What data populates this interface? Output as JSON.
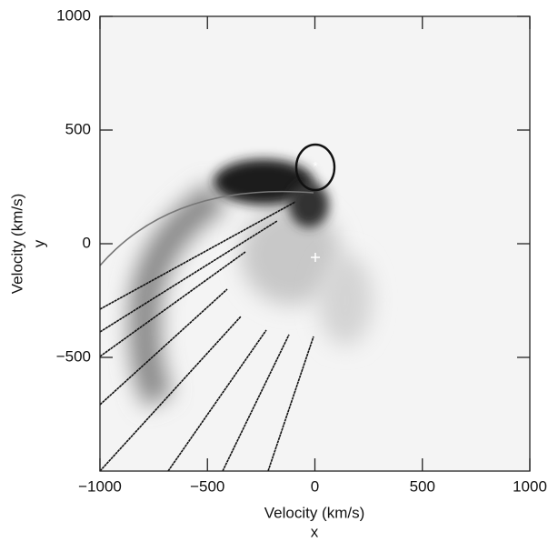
{
  "chart_data": {
    "type": "image",
    "xlabel": "Velocity (km/s)",
    "xlabel_name": "x",
    "ylabel": "Velocity (km/s)",
    "ylabel_name": "y",
    "xlim": [
      -1000,
      1000
    ],
    "ylim": [
      -1000,
      1000
    ],
    "xticks": [
      {
        "value": -1000,
        "label": "−1000"
      },
      {
        "value": -500,
        "label": "−500"
      },
      0,
      500,
      1000
    ],
    "yticks": [
      {
        "value": -500,
        "label": "−500"
      },
      0,
      500,
      1000
    ]
  }
}
